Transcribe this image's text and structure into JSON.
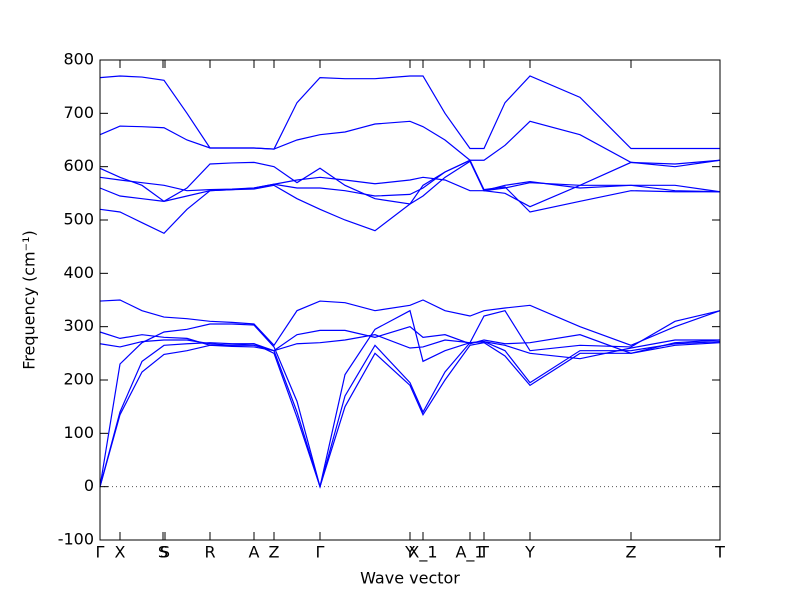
{
  "chart_data": {
    "type": "line",
    "xlabel": "Wave vector",
    "ylabel": "Frequency (cm⁻¹)",
    "x": [
      0,
      0.2,
      0.42,
      0.64,
      0.87,
      1.1,
      1.32,
      1.54,
      1.74,
      1.97,
      2.2,
      2.45,
      2.75,
      3.1,
      3.23,
      3.45,
      3.7,
      3.84,
      4.05,
      4.3,
      4.8,
      5.31,
      5.75,
      6.2
    ],
    "series": [
      {
        "color": "#0000ff",
        "values": [
          0,
          135,
          215,
          248,
          255,
          265,
          265,
          268,
          250,
          130,
          0,
          150,
          250,
          190,
          135,
          200,
          265,
          270,
          245,
          190,
          250,
          250,
          265,
          270
        ]
      },
      {
        "color": "#0000ff",
        "values": [
          0,
          140,
          235,
          265,
          268,
          270,
          268,
          268,
          255,
          140,
          0,
          170,
          265,
          195,
          140,
          215,
          270,
          272,
          255,
          195,
          255,
          255,
          268,
          272
        ]
      },
      {
        "color": "#0000ff",
        "values": [
          0,
          230,
          270,
          290,
          295,
          305,
          305,
          303,
          262,
          160,
          0,
          210,
          295,
          330,
          235,
          255,
          270,
          320,
          330,
          255,
          265,
          262,
          310,
          330
        ]
      },
      {
        "color": "#0000ff",
        "values": [
          268,
          262,
          272,
          275,
          275,
          268,
          265,
          265,
          255,
          268,
          270,
          275,
          285,
          260,
          262,
          275,
          270,
          272,
          265,
          250,
          240,
          260,
          275,
          275
        ]
      },
      {
        "color": "#0000ff",
        "values": [
          290,
          278,
          285,
          280,
          278,
          265,
          263,
          262,
          255,
          285,
          293,
          293,
          280,
          300,
          280,
          285,
          268,
          275,
          268,
          270,
          285,
          250,
          270,
          275
        ]
      },
      {
        "color": "#0000ff",
        "values": [
          348,
          350,
          330,
          318,
          315,
          310,
          308,
          305,
          265,
          330,
          348,
          345,
          330,
          340,
          350,
          330,
          320,
          330,
          335,
          340,
          300,
          265,
          300,
          330
        ]
      },
      {
        "color": "#0000ff",
        "values": [
          520,
          515,
          495,
          475,
          520,
          555,
          557,
          558,
          565,
          540,
          520,
          500,
          480,
          530,
          545,
          580,
          610,
          555,
          550,
          525,
          565,
          565,
          555,
          553
        ]
      },
      {
        "color": "#0000ff",
        "values": [
          560,
          545,
          540,
          535,
          545,
          555,
          557,
          560,
          567,
          560,
          560,
          555,
          545,
          548,
          560,
          590,
          612,
          557,
          562,
          515,
          535,
          555,
          553,
          553
        ]
      },
      {
        "color": "#0000ff",
        "values": [
          580,
          575,
          570,
          565,
          555,
          557,
          558,
          560,
          567,
          575,
          580,
          575,
          568,
          575,
          580,
          575,
          555,
          555,
          565,
          572,
          560,
          565,
          565,
          553
        ]
      },
      {
        "color": "#0000ff",
        "values": [
          597,
          580,
          565,
          535,
          560,
          605,
          607,
          608,
          600,
          570,
          597,
          565,
          540,
          530,
          565,
          590,
          612,
          555,
          560,
          570,
          565,
          608,
          605,
          612
        ]
      },
      {
        "color": "#0000ff",
        "values": [
          660,
          676,
          675,
          673,
          650,
          635,
          635,
          635,
          633,
          650,
          660,
          665,
          680,
          685,
          675,
          650,
          612,
          612,
          640,
          685,
          660,
          608,
          600,
          612
        ]
      },
      {
        "color": "#0000ff",
        "values": [
          767,
          770,
          768,
          762,
          700,
          635,
          635,
          635,
          633,
          720,
          767,
          765,
          765,
          770,
          770,
          700,
          634,
          634,
          720,
          770,
          730,
          634,
          634,
          634
        ]
      }
    ],
    "xlim": [
      0,
      6.2
    ],
    "xticks": [
      {
        "value": 0,
        "label": "Γ"
      },
      {
        "value": 0.2,
        "label": "X"
      },
      {
        "value": 0.63,
        "label": "S"
      },
      {
        "value": 0.65,
        "label": "S"
      },
      {
        "value": 1.1,
        "label": "R"
      },
      {
        "value": 1.54,
        "label": "A"
      },
      {
        "value": 1.74,
        "label": "Z"
      },
      {
        "value": 2.2,
        "label": "Γ"
      },
      {
        "value": 3.1,
        "label": "Y"
      },
      {
        "value": 3.23,
        "label": "X_1"
      },
      {
        "value": 3.7,
        "label": "A_1"
      },
      {
        "value": 3.84,
        "label": "T"
      },
      {
        "value": 4.3,
        "label": "Y"
      },
      {
        "value": 5.31,
        "label": "Z"
      },
      {
        "value": 6.2,
        "label": "T"
      }
    ],
    "ylim": [
      -100,
      800
    ],
    "yticks": [
      -100,
      0,
      100,
      200,
      300,
      400,
      500,
      600,
      700,
      800
    ],
    "hline": 0
  }
}
